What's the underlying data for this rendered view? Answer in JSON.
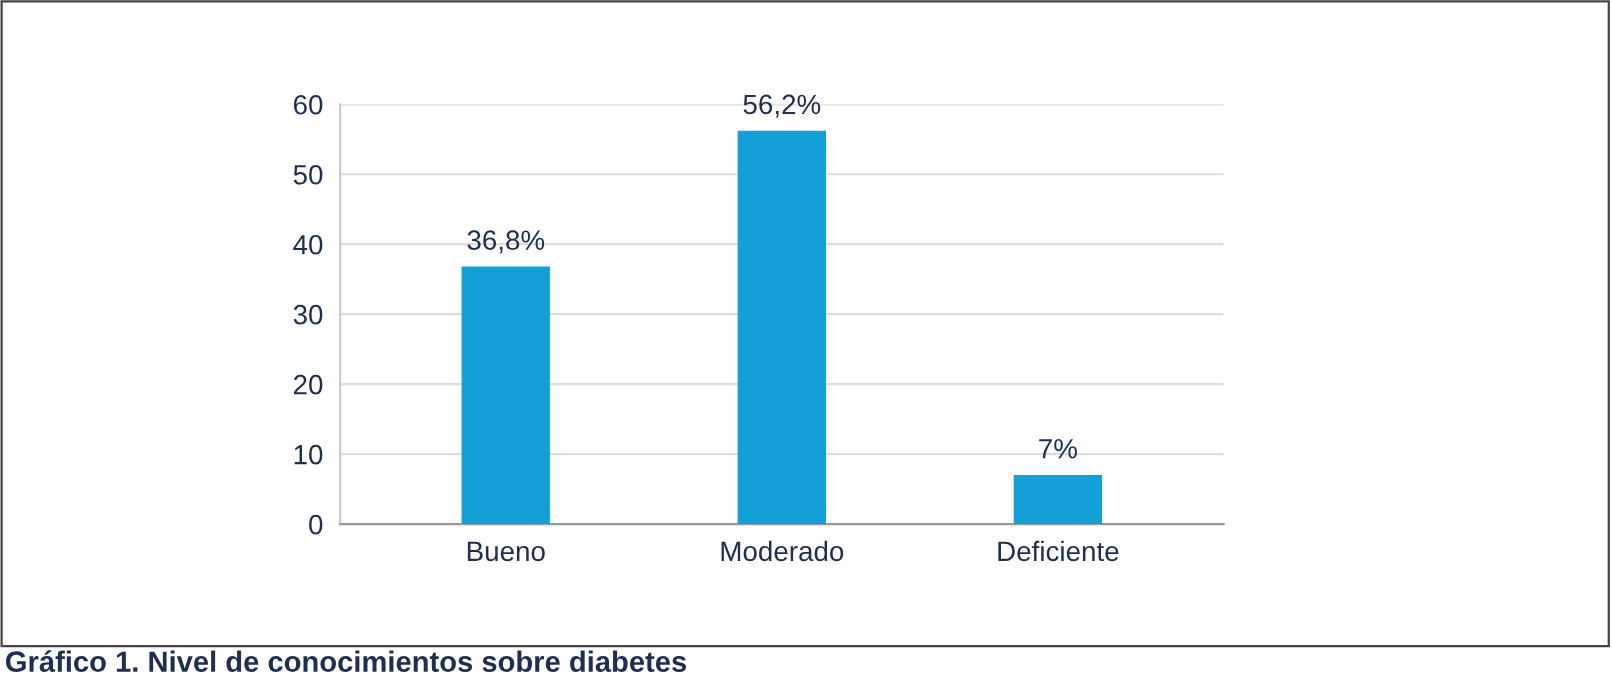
{
  "chart_data": {
    "type": "bar",
    "categories": [
      "Bueno",
      "Moderado",
      "Deficiente"
    ],
    "values": [
      36.8,
      56.2,
      7
    ],
    "value_labels": [
      "36,8%",
      "56,2%",
      "7%"
    ],
    "color": "#139fd7",
    "ylim": [
      0,
      60
    ],
    "yticks": [
      0,
      10,
      20,
      30,
      40,
      50,
      60
    ],
    "grid": "y",
    "annotations": [
      "Gráfico 1. Nivel de conocimientos sobre diabetes"
    ]
  }
}
